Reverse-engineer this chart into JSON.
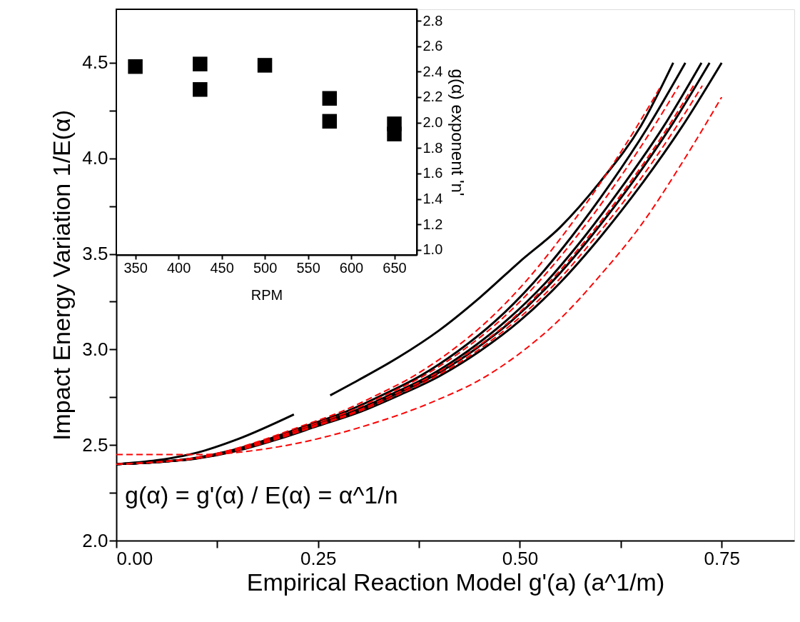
{
  "chart_data": [
    {
      "type": "line",
      "xlabel": "Empirical Reaction Model g'(a) (a^1/m)",
      "ylabel": "Impact Energy Variation 1/E(α)",
      "xlim": [
        0,
        0.84
      ],
      "ylim": [
        2,
        4.78
      ],
      "xticks": [
        {
          "value": 0,
          "label": "0.00"
        },
        {
          "value": 0.125,
          "label": null
        },
        {
          "value": 0.25,
          "label": "0.25"
        },
        {
          "value": 0.375,
          "label": null
        },
        {
          "value": 0.5,
          "label": "0.50"
        },
        {
          "value": 0.625,
          "label": null
        },
        {
          "value": 0.75,
          "label": "0.75"
        }
      ],
      "yticks": [
        {
          "value": 2,
          "label": "2.0"
        },
        {
          "value": 2.25,
          "label": null
        },
        {
          "value": 2.5,
          "label": "2.5"
        },
        {
          "value": 2.75,
          "label": null
        },
        {
          "value": 3,
          "label": "3.0"
        },
        {
          "value": 3.25,
          "label": null
        },
        {
          "value": 3.5,
          "label": "3.5"
        },
        {
          "value": 3.75,
          "label": null
        },
        {
          "value": 4,
          "label": "4.0"
        },
        {
          "value": 4.25,
          "label": null
        },
        {
          "value": 4.5,
          "label": "4.5"
        }
      ],
      "grid": false,
      "annotations": [
        "g(α) = g'(α) / E(α) = α^1/n"
      ],
      "series": [
        {
          "color": "#000000",
          "line_style": "solid",
          "x": [
            0,
            0.05,
            0.1,
            0.15,
            0.22
          ],
          "values": [
            2.4,
            2.42,
            2.46,
            2.53,
            2.66
          ]
        },
        {
          "color": "#000000",
          "line_style": "solid",
          "x": [
            0.265,
            0.3,
            0.35,
            0.4,
            0.45,
            0.5,
            0.55,
            0.6,
            0.65,
            0.69
          ],
          "values": [
            2.76,
            2.84,
            2.96,
            3.1,
            3.27,
            3.46,
            3.64,
            3.88,
            4.17,
            4.5
          ]
        },
        {
          "color": "#000000",
          "line_style": "solid",
          "x": [
            0,
            0.047,
            0.094,
            0.141,
            0.188,
            0.235,
            0.282,
            0.329,
            0.376,
            0.423,
            0.47,
            0.517,
            0.564,
            0.611,
            0.658,
            0.705
          ],
          "values": [
            2.4,
            2.41,
            2.43,
            2.47,
            2.53,
            2.6,
            2.67,
            2.76,
            2.86,
            2.99,
            3.15,
            3.35,
            3.59,
            3.86,
            4.16,
            4.5
          ]
        },
        {
          "color": "#000000",
          "line_style": "solid",
          "x": [
            0,
            0.048,
            0.097,
            0.145,
            0.193,
            0.242,
            0.29,
            0.338,
            0.387,
            0.435,
            0.483,
            0.532,
            0.58,
            0.628,
            0.677,
            0.725
          ],
          "values": [
            2.4,
            2.41,
            2.43,
            2.47,
            2.53,
            2.6,
            2.67,
            2.76,
            2.86,
            2.99,
            3.15,
            3.35,
            3.59,
            3.86,
            4.16,
            4.5
          ]
        },
        {
          "color": "#000000",
          "line_style": "solid",
          "x": [
            0,
            0.049,
            0.098,
            0.147,
            0.196,
            0.245,
            0.294,
            0.343,
            0.392,
            0.441,
            0.49,
            0.539,
            0.588,
            0.637,
            0.686,
            0.735
          ],
          "values": [
            2.4,
            2.41,
            2.43,
            2.47,
            2.53,
            2.6,
            2.67,
            2.76,
            2.86,
            2.99,
            3.15,
            3.35,
            3.59,
            3.86,
            4.16,
            4.5
          ]
        },
        {
          "color": "#000000",
          "line_style": "solid",
          "x": [
            0,
            0.05,
            0.1,
            0.15,
            0.2,
            0.25,
            0.3,
            0.35,
            0.4,
            0.45,
            0.5,
            0.55,
            0.6,
            0.65,
            0.7,
            0.75
          ],
          "values": [
            2.4,
            2.41,
            2.43,
            2.47,
            2.53,
            2.6,
            2.67,
            2.76,
            2.86,
            2.99,
            3.15,
            3.35,
            3.59,
            3.86,
            4.16,
            4.5
          ]
        },
        {
          "color": "#ff0000",
          "line_style": "dashed",
          "x": [
            0,
            0.046,
            0.092,
            0.138,
            0.184,
            0.23,
            0.276,
            0.322,
            0.368,
            0.414,
            0.46,
            0.506,
            0.552,
            0.598,
            0.644,
            0.675
          ],
          "values": [
            2.4,
            2.41,
            2.43,
            2.47,
            2.53,
            2.6,
            2.67,
            2.76,
            2.86,
            2.99,
            3.15,
            3.35,
            3.59,
            3.86,
            4.16,
            4.38
          ]
        },
        {
          "color": "#ff0000",
          "line_style": "dashed",
          "x": [
            0,
            0.0475,
            0.095,
            0.1425,
            0.19,
            0.2375,
            0.285,
            0.3325,
            0.38,
            0.4275,
            0.475,
            0.5225,
            0.57,
            0.6175,
            0.665,
            0.697
          ],
          "values": [
            2.4,
            2.41,
            2.43,
            2.47,
            2.53,
            2.6,
            2.67,
            2.76,
            2.86,
            2.99,
            3.15,
            3.35,
            3.59,
            3.86,
            4.16,
            4.38
          ]
        },
        {
          "color": "#ff0000",
          "line_style": "dashed",
          "x": [
            0,
            0.049,
            0.098,
            0.146,
            0.195,
            0.244,
            0.293,
            0.341,
            0.39,
            0.439,
            0.488,
            0.536,
            0.585,
            0.634,
            0.683,
            0.715
          ],
          "values": [
            2.4,
            2.41,
            2.43,
            2.47,
            2.53,
            2.6,
            2.67,
            2.76,
            2.86,
            2.99,
            3.15,
            3.35,
            3.59,
            3.86,
            4.16,
            4.38
          ]
        },
        {
          "color": "#ff0000",
          "line_style": "dashed",
          "x": [
            0,
            0.05,
            0.099,
            0.149,
            0.198,
            0.248,
            0.297,
            0.347,
            0.396,
            0.446,
            0.495,
            0.545,
            0.594,
            0.644,
            0.693,
            0.726
          ],
          "values": [
            2.4,
            2.41,
            2.43,
            2.47,
            2.53,
            2.6,
            2.67,
            2.76,
            2.86,
            2.99,
            3.15,
            3.35,
            3.59,
            3.86,
            4.16,
            4.38
          ]
        },
        {
          "color": "#ff0000",
          "line_style": "dashed",
          "x": [
            0,
            0.1,
            0.2,
            0.3,
            0.4,
            0.45,
            0.5,
            0.55,
            0.6,
            0.65,
            0.7,
            0.75
          ],
          "values": [
            2.45,
            2.45,
            2.49,
            2.59,
            2.74,
            2.84,
            2.98,
            3.16,
            3.39,
            3.65,
            3.97,
            4.32
          ]
        }
      ]
    },
    {
      "type": "scatter",
      "xlabel": "RPM",
      "ylabel": "g(α) exponent 'n'",
      "marker": "square",
      "grid": false,
      "xlim": [
        328,
        676
      ],
      "ylim": [
        0.96,
        2.89
      ],
      "xticks": [
        350,
        400,
        450,
        500,
        550,
        600,
        650
      ],
      "yticks": [
        {
          "value": 1,
          "label": "1.0"
        },
        {
          "value": 1.2,
          "label": "1.2"
        },
        {
          "value": 1.4,
          "label": "1.4"
        },
        {
          "value": 1.6,
          "label": "1.6"
        },
        {
          "value": 1.8,
          "label": "1.8"
        },
        {
          "value": 2,
          "label": "2.0"
        },
        {
          "value": 2.2,
          "label": "2.2"
        },
        {
          "value": 2.4,
          "label": "2.4"
        },
        {
          "value": 2.6,
          "label": "2.6"
        },
        {
          "value": 2.8,
          "label": "2.8"
        }
      ],
      "series": [
        {
          "color": "#000000",
          "x": [
            350,
            425,
            425,
            500,
            575,
            575,
            650,
            650
          ],
          "values": [
            2.44,
            2.46,
            2.26,
            2.45,
            2.19,
            2.01,
            1.99,
            1.91
          ]
        }
      ]
    }
  ]
}
